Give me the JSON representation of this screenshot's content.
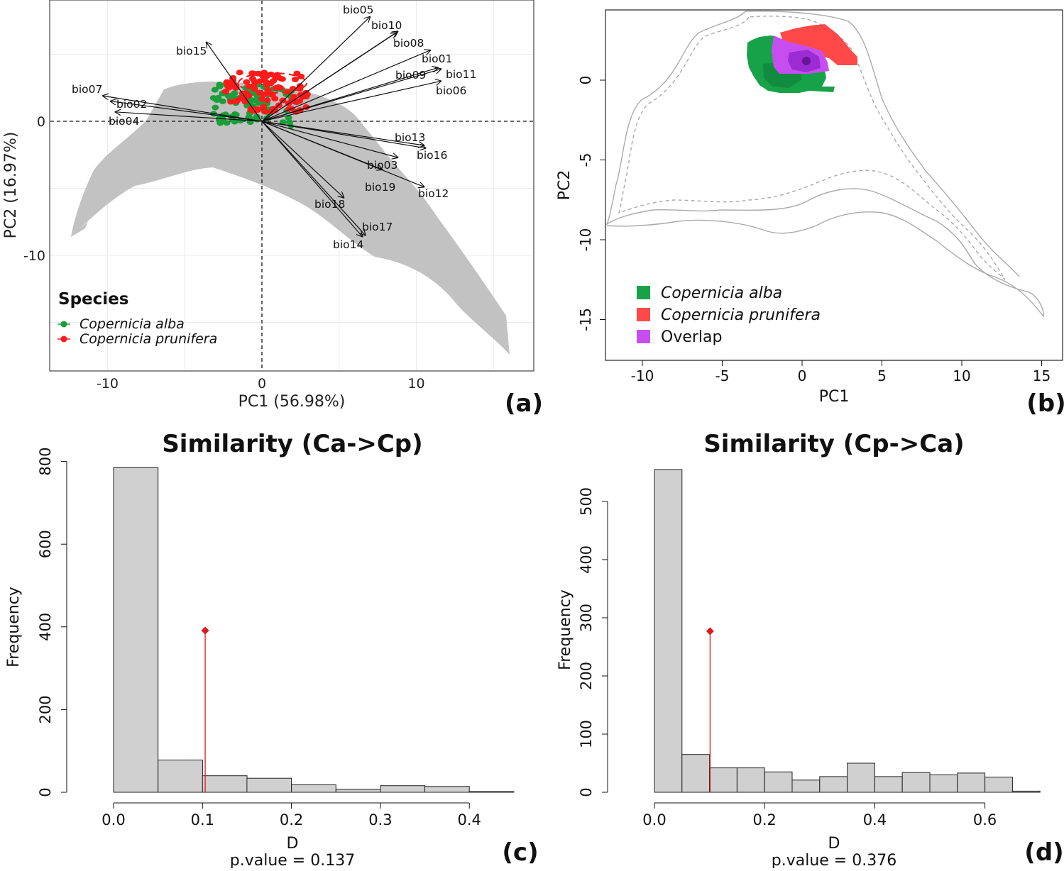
{
  "chart_data": [
    {
      "panel": "(a)",
      "type": "scatter",
      "xlabel": "PC1 (56.98%)",
      "ylabel": "PC2 (16.97%)",
      "xlim": [
        -13.5,
        17.5
      ],
      "ylim": [
        -18.8,
        9
      ],
      "xticks": [
        -10,
        0,
        10
      ],
      "yticks": [
        0,
        -10
      ],
      "grid": true,
      "legend": {
        "title": "Species",
        "placement": "bottom-left"
      },
      "series": [
        {
          "name": "Copernicia alba",
          "color": "#1a9e3a"
        },
        {
          "name": "Copernicia prunifera",
          "color": "#ff1a1a"
        }
      ],
      "arrows": [
        {
          "label": "bio05",
          "x": 7.0,
          "y": 7.8
        },
        {
          "label": "bio10",
          "x": 8.8,
          "y": 6.7
        },
        {
          "label": "bio08",
          "x": 8.7,
          "y": 6.6
        },
        {
          "label": "bio15",
          "x": -3.6,
          "y": 5.9
        },
        {
          "label": "bio01",
          "x": 10.9,
          "y": 5.3
        },
        {
          "label": "bio09",
          "x": 11.4,
          "y": 4.0
        },
        {
          "label": "bio11",
          "x": 11.6,
          "y": 3.9
        },
        {
          "label": "bio06",
          "x": 11.6,
          "y": 3.0
        },
        {
          "label": "bio07",
          "x": -10.3,
          "y": 1.9
        },
        {
          "label": "bio02",
          "x": -9.8,
          "y": 1.5
        },
        {
          "label": "bio04",
          "x": -9.5,
          "y": 0.7
        },
        {
          "label": "bio13",
          "x": 10.5,
          "y": -1.8
        },
        {
          "label": "bio16",
          "x": 10.6,
          "y": -2.0
        },
        {
          "label": "bio03",
          "x": 8.8,
          "y": -2.7
        },
        {
          "label": "bio12",
          "x": 10.5,
          "y": -4.9
        },
        {
          "label": "bio19",
          "x": 7.8,
          "y": -3.6
        },
        {
          "label": "bio18",
          "x": 5.3,
          "y": -5.7
        },
        {
          "label": "bio17",
          "x": 6.7,
          "y": -8.5
        },
        {
          "label": "bio14",
          "x": 6.5,
          "y": -8.6
        }
      ]
    },
    {
      "panel": "(b)",
      "type": "heatmap",
      "xlabel": "PC1",
      "ylabel": "PC2",
      "xlim": [
        -10.5,
        16.2
      ],
      "ylim": [
        -17.7,
        4.3
      ],
      "xticks": [
        -10,
        -5,
        0,
        5,
        10,
        15
      ],
      "yticks": [
        0,
        -5,
        -10,
        -15
      ],
      "legend": [
        "Copernicia alba",
        "Copernicia prunifera",
        "Overlap"
      ],
      "legend_colors": [
        "#17a24a",
        "#ff4848",
        "#c64ef0"
      ]
    },
    {
      "panel": "(c)",
      "type": "bar",
      "title": "Similarity (Ca->Cp)",
      "xlabel": "D",
      "ylabel": "Frequency",
      "subtitle": "p.value =  0.137",
      "bin_width": 0.05,
      "bin_starts": [
        0,
        0.05,
        0.1,
        0.15,
        0.2,
        0.25,
        0.3,
        0.35,
        0.4
      ],
      "values": [
        785,
        78,
        40,
        34,
        18,
        7,
        16,
        14,
        1
      ],
      "xlim": [
        0,
        0.45
      ],
      "ylim": [
        0,
        800
      ],
      "xticks": [
        0.0,
        0.1,
        0.2,
        0.3,
        0.4
      ],
      "yticks": [
        0,
        200,
        400,
        600,
        800
      ],
      "observed": {
        "x": 0.103,
        "marker_y": 391
      }
    },
    {
      "panel": "(d)",
      "type": "bar",
      "title": "Similarity (Cp->Ca)",
      "xlabel": "D",
      "ylabel": "Frequency",
      "subtitle": "p.value =  0.376",
      "bin_width": 0.05,
      "bin_starts": [
        0,
        0.05,
        0.1,
        0.15,
        0.2,
        0.25,
        0.3,
        0.35,
        0.4,
        0.45,
        0.5,
        0.55,
        0.6,
        0.65
      ],
      "values": [
        555,
        65,
        42,
        42,
        35,
        21,
        27,
        50,
        27,
        34,
        30,
        33,
        26,
        2
      ],
      "xlim": [
        0,
        0.7
      ],
      "ylim": [
        0,
        560
      ],
      "xticks": [
        0.0,
        0.2,
        0.4,
        0.6
      ],
      "yticks": [
        0,
        100,
        200,
        300,
        400,
        500
      ],
      "observed": {
        "x": 0.101,
        "marker_y": 277
      }
    }
  ]
}
